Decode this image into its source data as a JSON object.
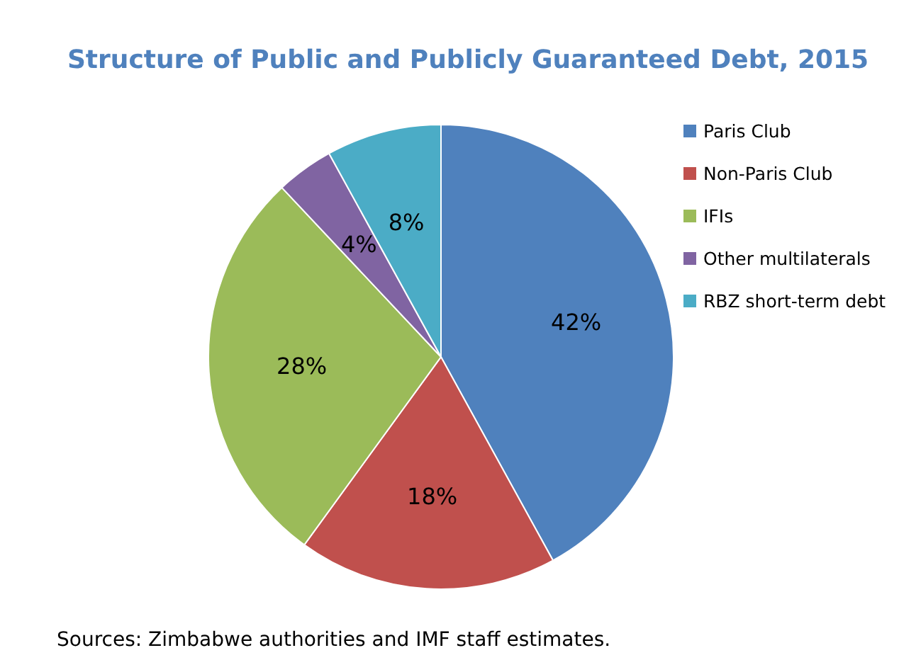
{
  "chart_data": {
    "type": "pie",
    "title": "Structure of Public and Publicly Guaranteed Debt, 2015",
    "categories": [
      "Paris Club",
      "Non-Paris Club",
      "IFIs",
      "Other multilaterals",
      "RBZ short-term debt"
    ],
    "values": [
      42,
      18,
      28,
      4,
      8
    ],
    "value_labels": [
      "42%",
      "18%",
      "28%",
      "4%",
      "8%"
    ],
    "colors": [
      "#4f81bd",
      "#c0504d",
      "#9bbb59",
      "#8064a2",
      "#4bacc6"
    ],
    "legend": "right",
    "annotations": [
      "Sources: Zimbabwe authorities and IMF staff estimates."
    ]
  }
}
